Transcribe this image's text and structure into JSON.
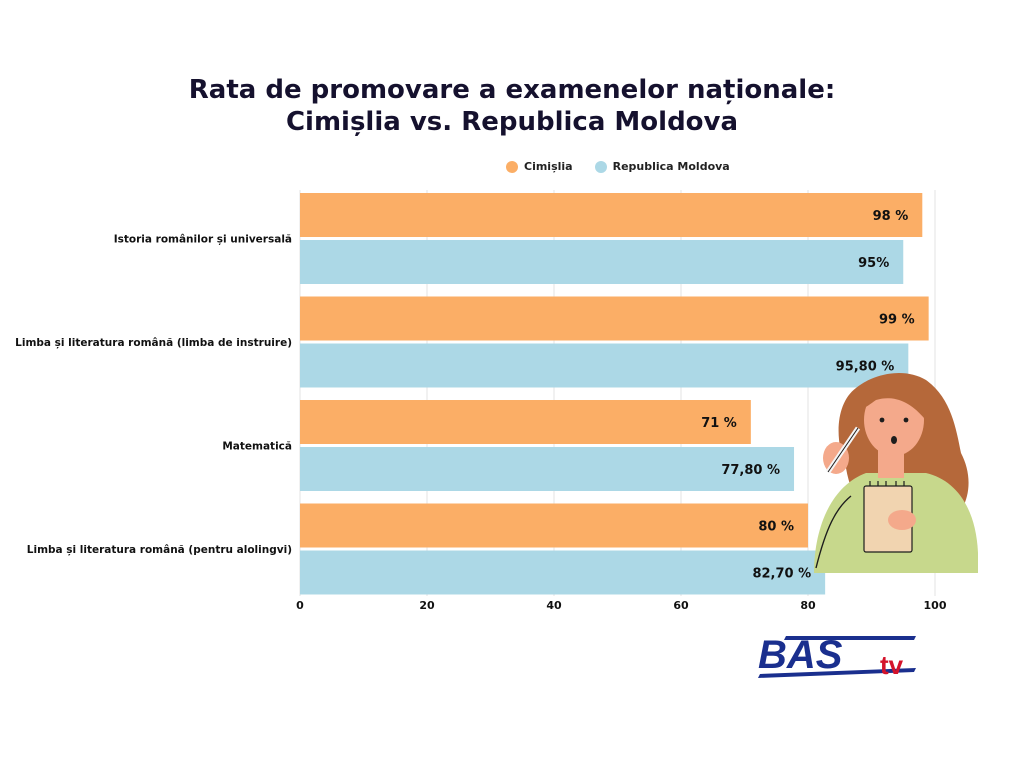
{
  "title_line1": "Rata de promovare a examenelor naționale:",
  "title_line2": "Cimișlia vs. Republica Moldova",
  "legend": [
    {
      "name": "Cimișlia",
      "color": "#fbae66"
    },
    {
      "name": "Republica Moldova",
      "color": "#acd8e6"
    }
  ],
  "chart_data": {
    "type": "bar",
    "orientation": "horizontal",
    "categories": [
      "Istoria românilor și universală",
      "Limba și literatura română (limba de instruire)",
      "Matematică",
      "Limba și literatura română (pentru alolingvi)"
    ],
    "series": [
      {
        "name": "Cimișlia",
        "color": "#fbae66",
        "values": [
          98,
          99,
          71,
          80
        ],
        "labels": [
          "98 %",
          "99 %",
          "71 %",
          "80 %"
        ]
      },
      {
        "name": "Republica Moldova",
        "color": "#acd8e6",
        "values": [
          95,
          95.8,
          77.8,
          82.7
        ],
        "labels": [
          "95%",
          "95,80 %",
          "77,80 %",
          "82,70 %"
        ]
      }
    ],
    "xlim": [
      0,
      100
    ],
    "xticks": [
      0,
      20,
      40,
      60,
      80,
      100
    ],
    "grid": true,
    "legend_position": "top"
  },
  "logo": {
    "text_main": "BAS",
    "text_sub": "tv"
  }
}
